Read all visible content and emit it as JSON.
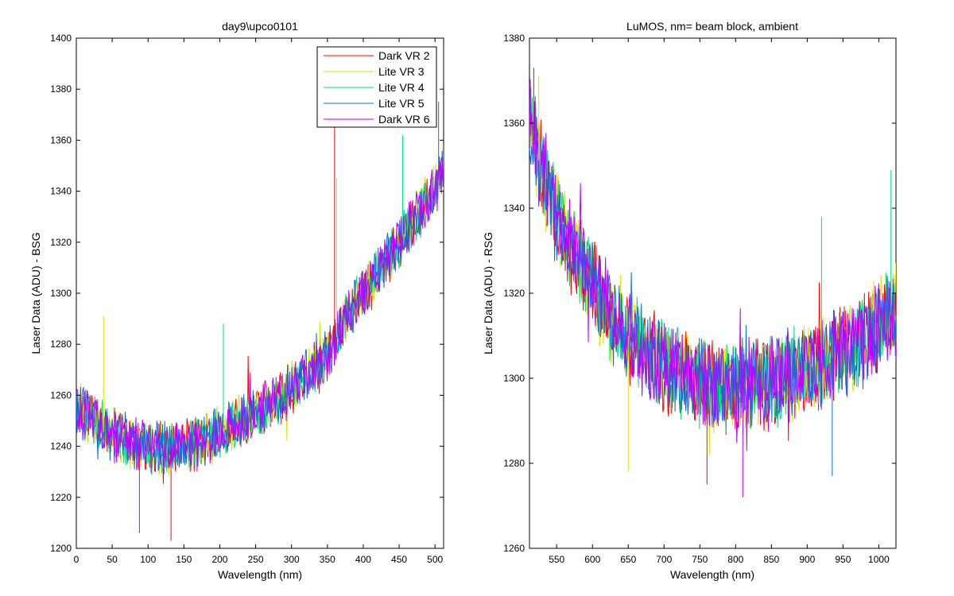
{
  "chart_data": [
    {
      "type": "line",
      "title": "day9\\upco0101",
      "xlabel": "Wavelength (nm)",
      "ylabel": "Laser Data (ADU) - BSG",
      "xlim": [
        0,
        512
      ],
      "ylim": [
        1200,
        1400
      ],
      "xticks": [
        0,
        50,
        100,
        150,
        200,
        250,
        300,
        350,
        400,
        450,
        500
      ],
      "yticks": [
        1200,
        1220,
        1240,
        1260,
        1280,
        1300,
        1320,
        1340,
        1360,
        1380,
        1400
      ],
      "grid": false,
      "legend_position": "top-right",
      "series": [
        {
          "name": "Dark VR 2",
          "color": "#ff0000"
        },
        {
          "name": "Lite VR 3",
          "color": "#d4e600"
        },
        {
          "name": "Lite VR 4",
          "color": "#00e07a"
        },
        {
          "name": "Lite VR 5",
          "color": "#0a6ee0"
        },
        {
          "name": "Dark VR 6",
          "color": "#c000ff"
        }
      ],
      "trend": {
        "x": [
          0,
          25,
          50,
          75,
          100,
          125,
          150,
          175,
          200,
          225,
          250,
          275,
          300,
          325,
          350,
          375,
          400,
          425,
          450,
          475,
          500,
          512
        ],
        "y": [
          1255,
          1250,
          1245,
          1241,
          1240,
          1239,
          1240,
          1242,
          1245,
          1249,
          1253,
          1258,
          1263,
          1268,
          1275,
          1290,
          1300,
          1310,
          1320,
          1330,
          1342,
          1348
        ]
      },
      "spikes": [
        {
          "x": 360,
          "y": 1370
        },
        {
          "x": 363,
          "y": 1345
        },
        {
          "x": 455,
          "y": 1362
        },
        {
          "x": 505,
          "y": 1375
        },
        {
          "x": 88,
          "y": 1206
        },
        {
          "x": 132,
          "y": 1203
        },
        {
          "x": 38,
          "y": 1291
        },
        {
          "x": 205,
          "y": 1288
        }
      ]
    },
    {
      "type": "line",
      "title": "LuMOS, nm= beam block, ambient",
      "xlabel": "Wavelength (nm)",
      "ylabel": "Laser Data (ADU) - RSG",
      "xlim": [
        512,
        1024
      ],
      "ylim": [
        1260,
        1380
      ],
      "xticks": [
        550,
        600,
        650,
        700,
        750,
        800,
        850,
        900,
        950,
        1000
      ],
      "yticks": [
        1260,
        1280,
        1300,
        1320,
        1340,
        1360,
        1380
      ],
      "grid": false,
      "series": [
        {
          "name": "Dark VR 2",
          "color": "#ff0000"
        },
        {
          "name": "Lite VR 3",
          "color": "#d4e600"
        },
        {
          "name": "Lite VR 4",
          "color": "#00e07a"
        },
        {
          "name": "Lite VR 5",
          "color": "#0a6ee0"
        },
        {
          "name": "Dark VR 6",
          "color": "#c000ff"
        }
      ],
      "trend": {
        "x": [
          512,
          530,
          550,
          575,
          600,
          625,
          650,
          700,
          750,
          800,
          850,
          900,
          950,
          1000,
          1024
        ],
        "y": [
          1360,
          1348,
          1338,
          1330,
          1322,
          1315,
          1310,
          1303,
          1299,
          1298,
          1299,
          1302,
          1306,
          1312,
          1316
        ]
      },
      "spikes": [
        {
          "x": 518,
          "y": 1373
        },
        {
          "x": 525,
          "y": 1371
        },
        {
          "x": 1017,
          "y": 1349
        },
        {
          "x": 935,
          "y": 1277
        },
        {
          "x": 810,
          "y": 1272
        },
        {
          "x": 760,
          "y": 1275
        },
        {
          "x": 650,
          "y": 1278
        },
        {
          "x": 920,
          "y": 1338
        }
      ]
    }
  ]
}
